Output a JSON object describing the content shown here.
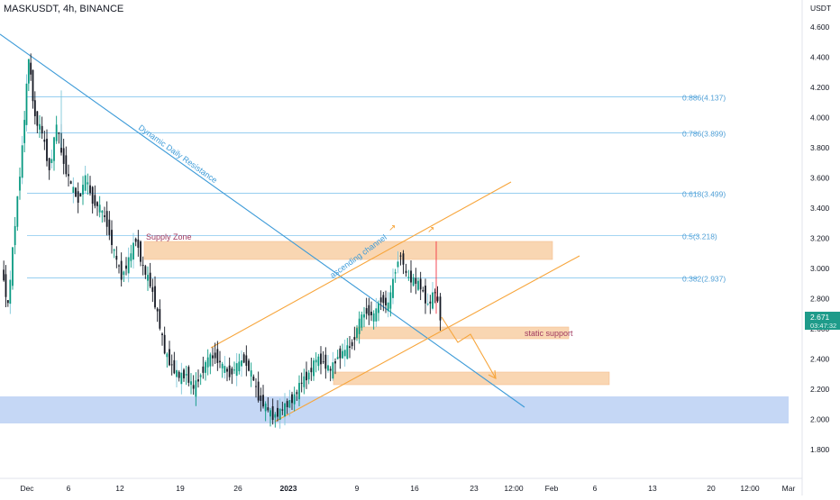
{
  "header": {
    "title": "MASKUSDT, 4h, BINANCE"
  },
  "chart_data": {
    "type": "candlestick",
    "symbol": "MASKUSDT",
    "interval": "4h",
    "exchange": "BINANCE",
    "currency_label": "USDT",
    "y_ticks": [
      "4.600",
      "4.400",
      "4.200",
      "4.000",
      "3.800",
      "3.600",
      "3.400",
      "3.200",
      "3.000",
      "2.800",
      "2.600",
      "2.400",
      "2.200",
      "2.000",
      "1.800"
    ],
    "x_ticks": [
      "Dec",
      "6",
      "12",
      "19",
      "26",
      "2023",
      "9",
      "16",
      "23",
      "12:00",
      "Feb",
      "6",
      "13",
      "20",
      "12:00",
      "Mar"
    ],
    "last_price": "2.671",
    "countdown": "03:47:32",
    "ylim": [
      1.7,
      4.7
    ],
    "fib_levels": [
      {
        "label": "0.886(4.137)",
        "value": 4.137
      },
      {
        "label": "0.786(3.899)",
        "value": 3.899
      },
      {
        "label": "0.618(3.499)",
        "value": 3.499
      },
      {
        "label": "0.5(3.218)",
        "value": 3.218
      },
      {
        "label": "0.382(2.937)",
        "value": 2.937
      }
    ],
    "annotations": {
      "dynamic_resistance": "Dynamic Daily Resistance",
      "ascending_channel": "ascending channel",
      "supply_zone": "Supply Zone",
      "static_support": "static support"
    },
    "colors": {
      "up": "#089981",
      "down": "#131722",
      "wick_up_highlight": "#f23645",
      "fib": "#5fb4e9",
      "trend": "#3d9bd8",
      "channel": "#f7a53b",
      "zone": "#f9cfa5",
      "demand": "#b7cdf3"
    }
  }
}
